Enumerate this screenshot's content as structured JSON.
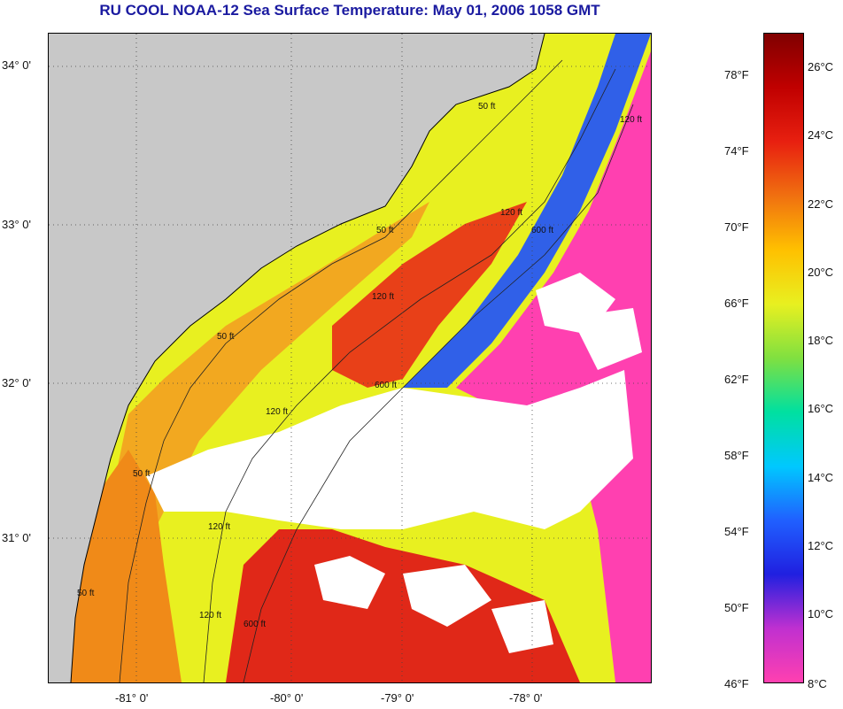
{
  "title": "RU COOL  NOAA-12  Sea Surface Temperature:  May 01, 2006 1058 GMT",
  "map": {
    "lat_labels": [
      "34° 0'",
      "33° 0'",
      "32° 0'",
      "31° 0'"
    ],
    "lon_labels": [
      "-81° 0'",
      "-80° 0'",
      "-79° 0'",
      "-78° 0'"
    ],
    "contour_labels": [
      "50 ft",
      "50 ft",
      "50 ft",
      "50 ft",
      "50 ft",
      "120 ft",
      "120 ft",
      "120 ft",
      "120 ft",
      "120 ft",
      "120 ft",
      "600 ft",
      "600 ft",
      "600 ft"
    ],
    "colors": {
      "land": "#c8c8c8",
      "cloud": "#ffffff",
      "coastal_yellow": "#e8f020",
      "shelf_orange": "#f08a18",
      "mid_red": "#e83018",
      "gulf_blue": "#2050e0",
      "offshore_magenta": "#ff40b0"
    }
  },
  "colorbar": {
    "fahrenheit_labels": [
      "78°F",
      "74°F",
      "70°F",
      "66°F",
      "62°F",
      "58°F",
      "54°F",
      "50°F",
      "46°F"
    ],
    "celsius_labels": [
      "26°C",
      "24°C",
      "22°C",
      "20°C",
      "18°C",
      "16°C",
      "14°C",
      "12°C",
      "10°C",
      "8°C"
    ],
    "gradient": [
      "#ff40b0",
      "#c030d0",
      "#2020e0",
      "#2060ff",
      "#00c8ff",
      "#00e0a0",
      "#80e040",
      "#e8f020",
      "#ffc000",
      "#f07010",
      "#e82010",
      "#c00000",
      "#800000"
    ]
  }
}
